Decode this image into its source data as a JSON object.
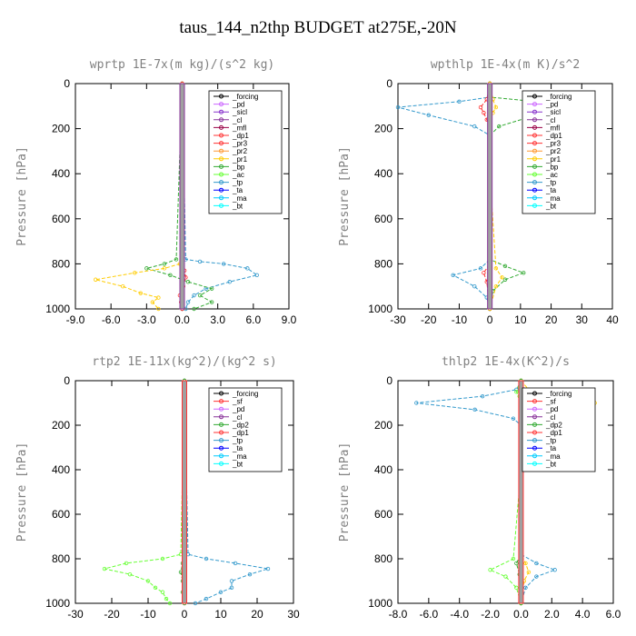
{
  "title": "taus_144_n2thp  BUDGET at275E,-20N",
  "colors": {
    "forcing": "#000000",
    "pd": "#cc66ff",
    "sicl": "#8833cc",
    "cl": "#883399",
    "mfl": "#990044",
    "dp1": "#ff3333",
    "pr3": "#ff3333",
    "pr2": "#ff9933",
    "pr1": "#ffcc00",
    "bp": "#33aa33",
    "ac": "#66ff33",
    "tp": "#3399cc",
    "ta": "#0000ff",
    "ma": "#00ccff",
    "bt": "#00ffff",
    "sf": "#ff3333",
    "dp2": "#33aa33",
    "dp1g": "#66ff33",
    "bar": "#a0a0a0"
  },
  "chart_data": [
    {
      "type": "line",
      "title": "wprtp  1E-7x(m kg)/(s^2 kg)",
      "ylabel": "Pressure [hPa]",
      "xlim": [
        -9,
        9
      ],
      "ylim": [
        1000,
        0
      ],
      "xticks": [
        "-9.0",
        "-6.0",
        "-3.0",
        "0.0",
        "3.0",
        "6.0",
        "9.0"
      ],
      "yticks": [
        "0",
        "200",
        "400",
        "600",
        "800",
        "1000"
      ],
      "legend": [
        "_forcing",
        "_pd",
        "_sicl",
        "_cl",
        "_mfl",
        "_dp1",
        "_pr3",
        "_pr2",
        "_pr1",
        "_bp",
        "_ac",
        "_tp",
        "_ta",
        "_ma",
        "_bt"
      ],
      "legend_position": "top-right",
      "series": [
        {
          "name": "_forcing",
          "color": "#000000",
          "x": [
            0,
            0,
            0,
            0,
            0,
            0
          ],
          "y": [
            0,
            200,
            400,
            600,
            800,
            1000
          ]
        },
        {
          "name": "_tp",
          "color": "#3399cc",
          "x": [
            0,
            0.3,
            1.5,
            3.5,
            5.5,
            6.3,
            4,
            2,
            1,
            0.5,
            0.3
          ],
          "y": [
            0,
            780,
            790,
            800,
            820,
            850,
            880,
            910,
            940,
            970,
            1000
          ]
        },
        {
          "name": "_bp",
          "color": "#33aa33",
          "x": [
            0,
            -0.5,
            -1.5,
            -3.0,
            -1.0,
            0.5,
            2.5,
            1.5,
            2.5,
            1.0
          ],
          "y": [
            0,
            780,
            800,
            820,
            850,
            880,
            910,
            940,
            970,
            1000
          ]
        },
        {
          "name": "_pr1",
          "color": "#ffcc00",
          "x": [
            0,
            -0.2,
            -1.5,
            -4.0,
            -7.3,
            -5.0,
            -3.5,
            -2.0,
            -2.5,
            -2.0
          ],
          "y": [
            0,
            800,
            820,
            840,
            870,
            900,
            930,
            950,
            970,
            1000
          ]
        },
        {
          "name": "_dp1",
          "color": "#ff3333",
          "x": [
            0,
            0,
            0.2,
            0.3,
            0.1,
            -0.2,
            -0.1,
            0
          ],
          "y": [
            0,
            780,
            830,
            860,
            900,
            940,
            970,
            1000
          ]
        }
      ]
    },
    {
      "type": "line",
      "title": "wpthlp  1E-4x(m K)/s^2",
      "ylabel": "Pressure [hPa]",
      "xlim": [
        -30,
        40
      ],
      "ylim": [
        1000,
        0
      ],
      "xticks": [
        "-30",
        "-20",
        "-10",
        "0",
        "10",
        "20",
        "30",
        "40"
      ],
      "yticks": [
        "0",
        "200",
        "400",
        "600",
        "800",
        "1000"
      ],
      "legend": [
        "_forcing",
        "_pd",
        "_sicl",
        "_cl",
        "_mfl",
        "_dp1",
        "_pr3",
        "_pr2",
        "_pr1",
        "_bp",
        "_ac",
        "_tp",
        "_ta",
        "_ma",
        "_bt"
      ],
      "legend_position": "top-right",
      "series": [
        {
          "name": "_forcing",
          "color": "#000000",
          "x": [
            0,
            0,
            0,
            0,
            0,
            0
          ],
          "y": [
            0,
            200,
            400,
            600,
            800,
            1000
          ]
        },
        {
          "name": "_tp",
          "color": "#3399cc",
          "x": [
            0,
            0,
            -10,
            -30,
            -20,
            -5,
            0,
            0,
            0,
            -3,
            -12,
            -5,
            -1,
            0
          ],
          "y": [
            0,
            60,
            80,
            105,
            140,
            190,
            230,
            400,
            780,
            820,
            850,
            900,
            950,
            1000
          ]
        },
        {
          "name": "_bp",
          "color": "#33aa33",
          "x": [
            0,
            0,
            15,
            32,
            15,
            3,
            0,
            0,
            0,
            5,
            11,
            5,
            1,
            0
          ],
          "y": [
            0,
            60,
            80,
            105,
            140,
            190,
            230,
            400,
            780,
            810,
            840,
            870,
            920,
            1000
          ]
        },
        {
          "name": "_dp1",
          "color": "#ff3333",
          "x": [
            0,
            -1,
            -3,
            -2,
            -1,
            0,
            0,
            0,
            -2,
            -1,
            0
          ],
          "y": [
            0,
            70,
            105,
            130,
            160,
            200,
            400,
            800,
            840,
            880,
            1000
          ]
        },
        {
          "name": "_pr1",
          "color": "#ffcc00",
          "x": [
            0,
            1,
            2,
            1,
            0,
            0,
            0,
            2,
            4,
            2,
            0
          ],
          "y": [
            0,
            70,
            105,
            130,
            160,
            200,
            400,
            820,
            860,
            900,
            1000
          ]
        }
      ]
    },
    {
      "type": "line",
      "title": "rtp2  1E-11x(kg^2)/(kg^2 s)",
      "ylabel": "Pressure [hPa]",
      "xlim": [
        -30,
        30
      ],
      "ylim": [
        1000,
        0
      ],
      "xticks": [
        "-30",
        "-20",
        "-10",
        "0",
        "10",
        "20",
        "30"
      ],
      "yticks": [
        "0",
        "200",
        "400",
        "600",
        "800",
        "1000"
      ],
      "legend": [
        "_forcing",
        "_sf",
        "_pd",
        "_cl",
        "_dp2",
        "_dp1",
        "_tp",
        "_ta",
        "_ma",
        "_bt"
      ],
      "legend_position": "top-right",
      "series": [
        {
          "name": "_forcing",
          "color": "#ff3333",
          "x": [
            0,
            0,
            0,
            0,
            0,
            0
          ],
          "y": [
            0,
            200,
            400,
            600,
            800,
            1000
          ]
        },
        {
          "name": "_tp",
          "color": "#3399cc",
          "x": [
            0,
            1,
            6,
            14,
            23,
            18,
            13,
            13,
            10,
            6,
            3
          ],
          "y": [
            0,
            780,
            800,
            820,
            845,
            870,
            900,
            930,
            950,
            980,
            1000
          ]
        },
        {
          "name": "_dp1",
          "color": "#66ff33",
          "x": [
            0,
            -1,
            -6,
            -16,
            -22,
            -15,
            -10,
            -8,
            -6,
            -5,
            -4
          ],
          "y": [
            0,
            780,
            800,
            820,
            845,
            870,
            900,
            930,
            950,
            980,
            1000
          ]
        },
        {
          "name": "_dp2",
          "color": "#33aa33",
          "x": [
            0,
            -0.5,
            -1,
            -0.5,
            -0.5,
            0
          ],
          "y": [
            0,
            820,
            860,
            900,
            950,
            1000
          ]
        }
      ]
    },
    {
      "type": "line",
      "title": "thlp2  1E-4x(K^2)/s",
      "ylabel": "Pressure [hPa]",
      "xlim": [
        -8,
        6
      ],
      "ylim": [
        1000,
        0
      ],
      "xticks": [
        "-8.0",
        "-6.0",
        "-4.0",
        "-2.0",
        "0.0",
        "2.0",
        "4.0",
        "6.0"
      ],
      "yticks": [
        "0",
        "200",
        "400",
        "600",
        "800",
        "1000"
      ],
      "legend": [
        "_forcing",
        "_sf",
        "_pd",
        "_cl",
        "_dp2",
        "_dp1",
        "_tp",
        "_ta",
        "_ma",
        "_bt"
      ],
      "legend_position": "top-right",
      "series": [
        {
          "name": "_forcing",
          "color": "#ff3333",
          "x": [
            0,
            0,
            0,
            0,
            0,
            0
          ],
          "y": [
            0,
            200,
            400,
            600,
            800,
            1000
          ]
        },
        {
          "name": "_tp",
          "color": "#3399cc",
          "x": [
            0,
            -0.3,
            -2.5,
            -6.8,
            -3,
            -0.5,
            0,
            0,
            0,
            1,
            2.2,
            1,
            0.3,
            0
          ],
          "y": [
            0,
            40,
            70,
            100,
            130,
            170,
            200,
            400,
            780,
            820,
            850,
            880,
            930,
            1000
          ]
        },
        {
          "name": "_pr1",
          "color": "#ffcc00",
          "x": [
            0,
            0.5,
            2.5,
            4.8,
            2.5,
            0.5,
            0,
            0,
            0,
            0.3,
            0.5,
            0.2,
            0
          ],
          "y": [
            0,
            40,
            70,
            100,
            130,
            170,
            200,
            400,
            780,
            820,
            860,
            900,
            1000
          ]
        },
        {
          "name": "_dp1",
          "color": "#66ff33",
          "x": [
            0,
            -0.1,
            -0.3,
            -0.1,
            0,
            0,
            0,
            -0.5,
            -2.0,
            -1.0,
            -0.3,
            0
          ],
          "y": [
            0,
            30,
            50,
            70,
            100,
            200,
            400,
            800,
            850,
            880,
            930,
            1000
          ]
        },
        {
          "name": "_dp2",
          "color": "#33aa33",
          "x": [
            0,
            0,
            -0.3,
            -0.1,
            0
          ],
          "y": [
            0,
            780,
            820,
            870,
            1000
          ]
        }
      ]
    }
  ]
}
